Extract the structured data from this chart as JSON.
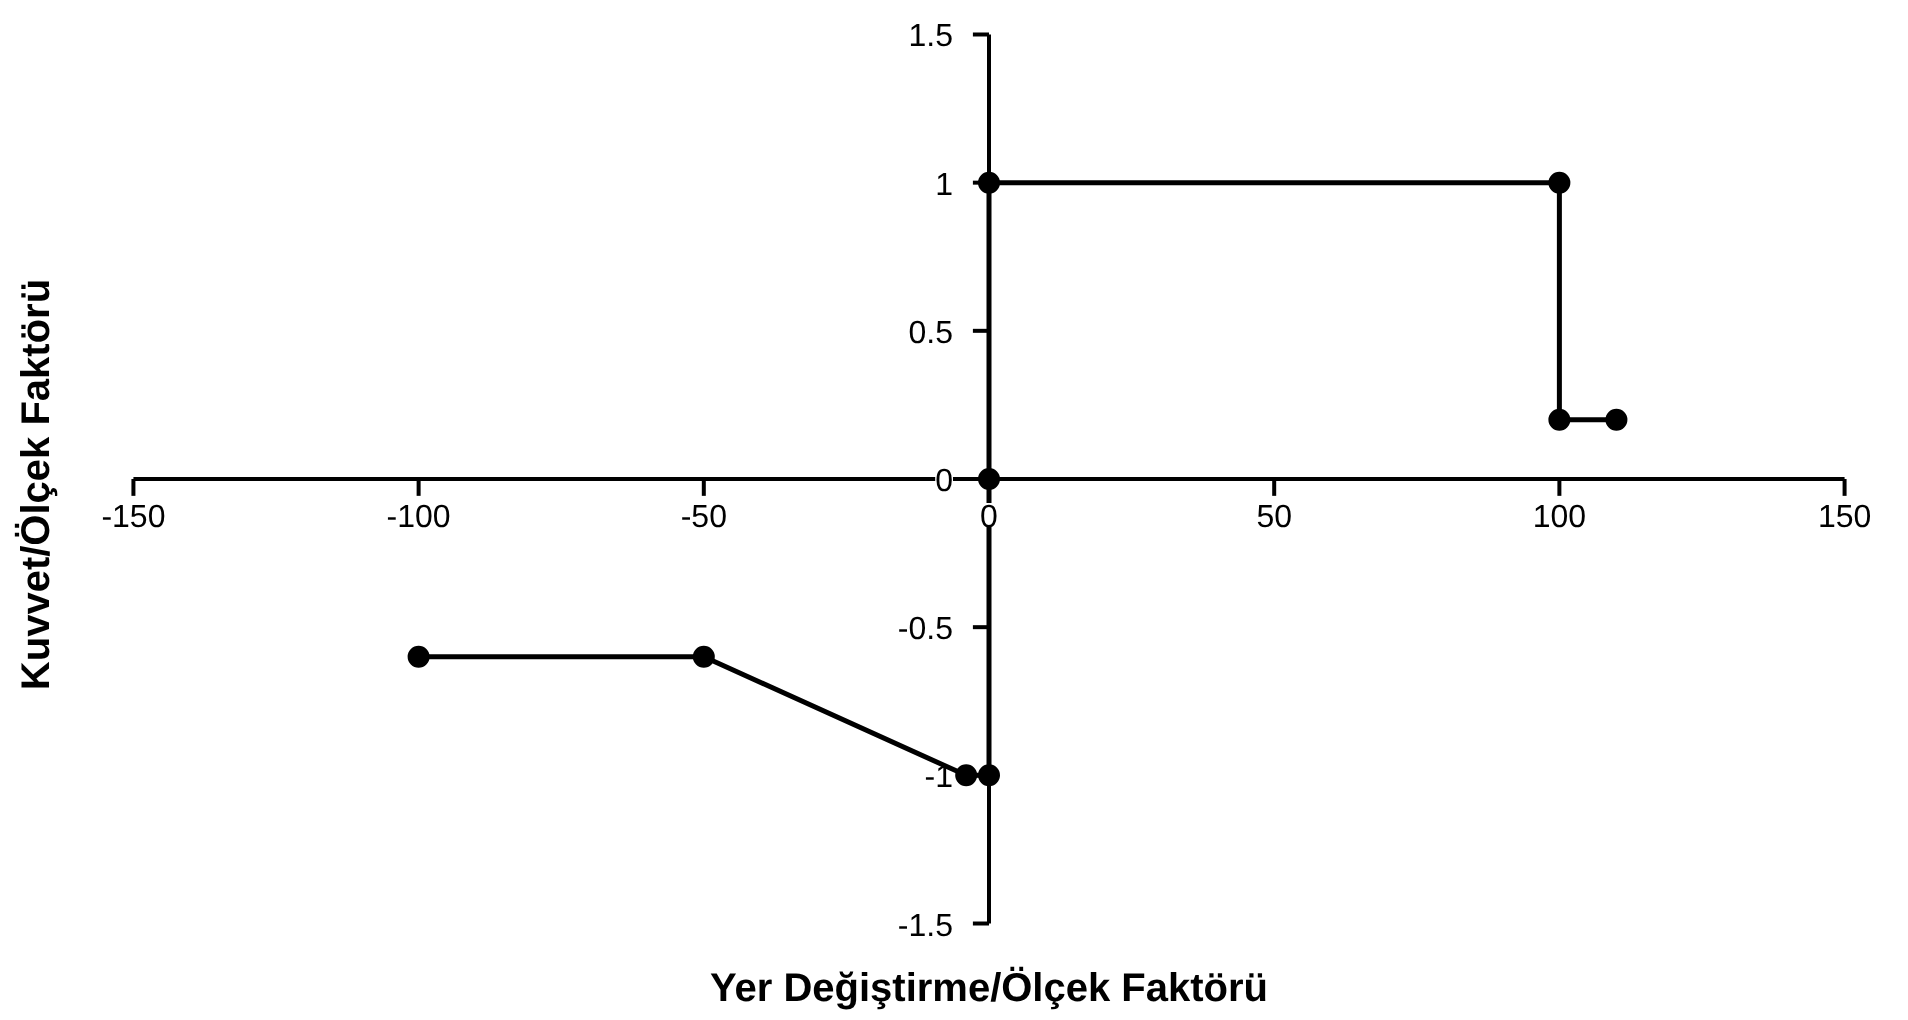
{
  "chart_data": {
    "type": "line",
    "xlabel": "Yer Değiştirme/Ölçek Faktörü",
    "ylabel": "Kuvvet/Ölçek  Faktörü",
    "x": [
      -100,
      -50,
      -4,
      0,
      0,
      0,
      100,
      100,
      110
    ],
    "series": [
      {
        "color": "#000000",
        "values": [
          -0.6,
          -0.6,
          -1,
          -1,
          0,
          1,
          1,
          0.2,
          0.2
        ]
      }
    ],
    "xlim": [
      -150,
      150
    ],
    "xticks": [
      -150,
      -100,
      -50,
      0,
      50,
      100,
      150
    ],
    "ylim": [
      -1.5,
      1.5
    ],
    "yticks": [
      -1.5,
      -1,
      -0.5,
      0,
      0.5,
      1,
      1.5
    ],
    "marker": "circle",
    "line_style": "solid",
    "grid": false
  }
}
